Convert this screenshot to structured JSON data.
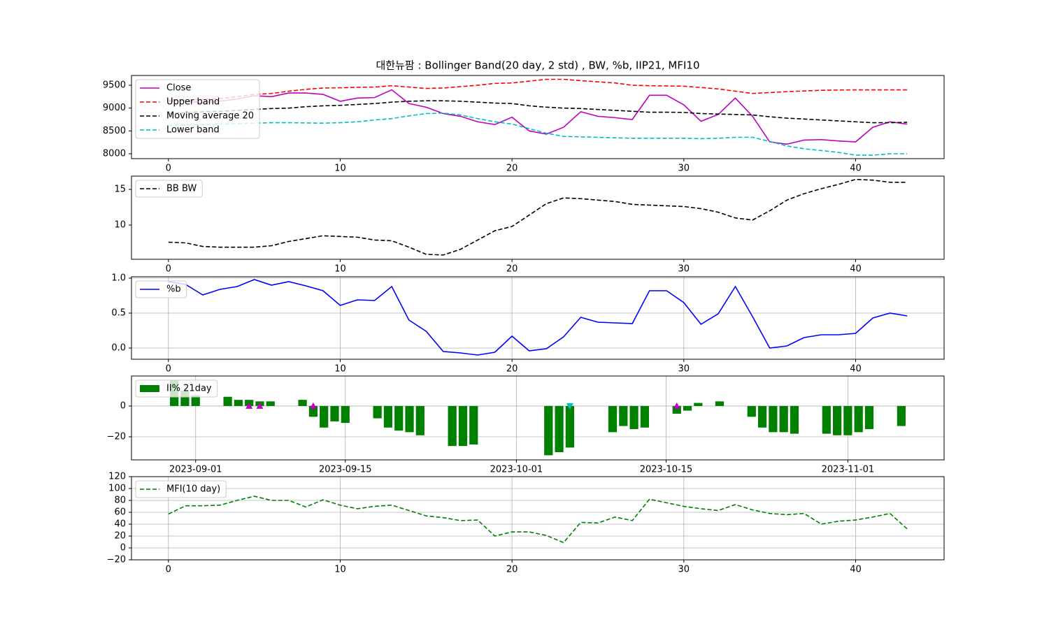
{
  "chart_data": [
    {
      "type": "line",
      "title": "대한뉴팜 : Bollinger Band(20 day, 2 std) , BW, %b, IIP21, MFI10",
      "x": [
        0,
        1,
        2,
        3,
        4,
        5,
        6,
        7,
        8,
        9,
        10,
        11,
        12,
        13,
        14,
        15,
        16,
        17,
        18,
        19,
        20,
        21,
        22,
        23,
        24,
        25,
        26,
        27,
        28,
        29,
        30,
        31,
        32,
        33,
        34,
        35,
        36,
        37,
        38,
        39,
        40,
        41,
        42,
        43
      ],
      "xlim": [
        -2.15,
        45.15
      ],
      "xticks": [
        0,
        10,
        20,
        30,
        40
      ],
      "ylim": [
        7893,
        9714
      ],
      "yticks": [
        8000,
        8500,
        9000,
        9500
      ],
      "grid": false,
      "legend": "upper left",
      "series": [
        {
          "name": "Close",
          "color": "#bf00bf",
          "dash": false,
          "values": [
            9180,
            9150,
            9120,
            9150,
            9200,
            9270,
            9250,
            9330,
            9330,
            9300,
            9150,
            9220,
            9230,
            9400,
            9100,
            9020,
            8880,
            8820,
            8700,
            8640,
            8800,
            8500,
            8430,
            8580,
            8920,
            8820,
            8790,
            8750,
            9280,
            9280,
            9070,
            8710,
            8860,
            9220,
            8820,
            8260,
            8210,
            8300,
            8310,
            8280,
            8260,
            8580,
            8700,
            8650
          ]
        },
        {
          "name": "Upper band",
          "color": "#ff0000",
          "dash": true,
          "values": [
            9150,
            9170,
            9190,
            9210,
            9250,
            9300,
            9320,
            9370,
            9410,
            9440,
            9445,
            9455,
            9460,
            9490,
            9460,
            9430,
            9440,
            9470,
            9500,
            9540,
            9550,
            9590,
            9630,
            9630,
            9600,
            9575,
            9550,
            9500,
            9490,
            9485,
            9480,
            9450,
            9420,
            9370,
            9320,
            9340,
            9360,
            9375,
            9390,
            9395,
            9400,
            9400,
            9400,
            9400
          ]
        },
        {
          "name": "Moving average 20",
          "color": "#000000",
          "dash": true,
          "values": [
            8880,
            8900,
            8920,
            8930,
            8950,
            8970,
            8990,
            9000,
            9030,
            9050,
            9060,
            9080,
            9100,
            9130,
            9150,
            9160,
            9160,
            9150,
            9130,
            9110,
            9100,
            9050,
            9020,
            9000,
            8990,
            8970,
            8950,
            8930,
            8910,
            8910,
            8905,
            8880,
            8870,
            8860,
            8850,
            8810,
            8780,
            8760,
            8740,
            8720,
            8700,
            8680,
            8680,
            8690
          ]
        },
        {
          "name": "Lower band",
          "color": "#00bfbf",
          "dash": true,
          "values": [
            8620,
            8630,
            8640,
            8650,
            8660,
            8670,
            8680,
            8680,
            8675,
            8670,
            8680,
            8700,
            8740,
            8770,
            8830,
            8880,
            8890,
            8850,
            8770,
            8700,
            8650,
            8550,
            8450,
            8380,
            8370,
            8360,
            8350,
            8340,
            8340,
            8340,
            8340,
            8330,
            8340,
            8360,
            8360,
            8270,
            8170,
            8110,
            8070,
            8030,
            7970,
            7970,
            8000,
            8000
          ]
        }
      ]
    },
    {
      "type": "line",
      "x": [
        0,
        1,
        2,
        3,
        4,
        5,
        6,
        7,
        8,
        9,
        10,
        11,
        12,
        13,
        14,
        15,
        16,
        17,
        18,
        19,
        20,
        21,
        22,
        23,
        24,
        25,
        26,
        27,
        28,
        29,
        30,
        31,
        32,
        33,
        34,
        35,
        36,
        37,
        38,
        39,
        40,
        41,
        42,
        43
      ],
      "xlim": [
        -2.15,
        45.15
      ],
      "xticks": [
        0,
        10,
        20,
        30,
        40
      ],
      "ylim": [
        5.2,
        16.86
      ],
      "yticks": [
        10,
        15
      ],
      "grid": false,
      "legend": "upper left",
      "series": [
        {
          "name": "BB BW",
          "color": "#000000",
          "dash": true,
          "values": [
            7.6,
            7.5,
            7.0,
            6.9,
            6.9,
            6.9,
            7.1,
            7.7,
            8.1,
            8.5,
            8.4,
            8.3,
            7.9,
            7.8,
            6.9,
            5.9,
            5.8,
            6.6,
            7.9,
            9.2,
            9.8,
            11.4,
            13.0,
            13.8,
            13.7,
            13.5,
            13.3,
            12.9,
            12.8,
            12.7,
            12.6,
            12.3,
            11.8,
            11.0,
            10.7,
            12.0,
            13.5,
            14.4,
            15.1,
            15.7,
            16.4,
            16.3,
            16.0,
            16.0
          ]
        }
      ]
    },
    {
      "type": "line",
      "x": [
        0,
        1,
        2,
        3,
        4,
        5,
        6,
        7,
        8,
        9,
        10,
        11,
        12,
        13,
        14,
        15,
        16,
        17,
        18,
        19,
        20,
        21,
        22,
        23,
        24,
        25,
        26,
        27,
        28,
        29,
        30,
        31,
        32,
        33,
        34,
        35,
        36,
        37,
        38,
        39,
        40,
        41,
        42,
        43
      ],
      "xlim": [
        -2.15,
        45.15
      ],
      "xticks": [
        0,
        10,
        20,
        30,
        40
      ],
      "ylim": [
        -0.16,
        1.02
      ],
      "yticks": [
        {
          "value": 0,
          "label": "0.0"
        },
        0.5,
        {
          "value": 1,
          "label": "1.0"
        }
      ],
      "grid": true,
      "legend": "upper left",
      "series": [
        {
          "name": "%b",
          "color": "#0000ff",
          "dash": false,
          "values": [
            0.95,
            0.91,
            0.76,
            0.84,
            0.88,
            0.98,
            0.9,
            0.95,
            0.89,
            0.82,
            0.61,
            0.69,
            0.68,
            0.88,
            0.4,
            0.24,
            -0.05,
            -0.07,
            -0.1,
            -0.06,
            0.17,
            -0.04,
            -0.01,
            0.16,
            0.44,
            0.37,
            0.36,
            0.35,
            0.82,
            0.82,
            0.65,
            0.34,
            0.49,
            0.88,
            0.45,
            0.0,
            0.03,
            0.15,
            0.19,
            0.19,
            0.21,
            0.43,
            0.5,
            0.46
          ]
        }
      ]
    },
    {
      "type": "bar",
      "x": [
        "2023-08-30",
        "2023-08-31",
        "2023-09-01",
        "2023-09-04",
        "2023-09-05",
        "2023-09-06",
        "2023-09-07",
        "2023-09-08",
        "2023-09-11",
        "2023-09-12",
        "2023-09-13",
        "2023-09-14",
        "2023-09-15",
        "2023-09-18",
        "2023-09-19",
        "2023-09-20",
        "2023-09-21",
        "2023-09-22",
        "2023-09-25",
        "2023-09-26",
        "2023-09-27",
        "2023-10-04",
        "2023-10-05",
        "2023-10-06",
        "2023-10-10",
        "2023-10-11",
        "2023-10-12",
        "2023-10-13",
        "2023-10-16",
        "2023-10-17",
        "2023-10-18",
        "2023-10-19",
        "2023-10-20",
        "2023-10-23",
        "2023-10-24",
        "2023-10-25",
        "2023-10-26",
        "2023-10-27",
        "2023-10-30",
        "2023-10-31",
        "2023-11-01",
        "2023-11-02",
        "2023-11-03",
        "2023-11-06"
      ],
      "xlim": [
        "2023-08-26",
        "2023-11-10"
      ],
      "xticks": [
        "2023-09-01",
        "2023-09-15",
        "2023-10-01",
        "2023-10-15",
        "2023-11-01"
      ],
      "ylim": [
        -35,
        19.5
      ],
      "yticks": [
        {
          "value": -20,
          "label": "−20"
        },
        0
      ],
      "grid": true,
      "legend": "upper left",
      "series": [
        {
          "name": "II% 21day",
          "color": "#008000",
          "values": [
            17,
            10,
            7,
            6,
            4,
            4,
            3,
            3,
            4,
            -7,
            -14,
            -10,
            -11,
            -8,
            -14,
            -16,
            -17,
            -19,
            -26,
            -26,
            -25,
            -32,
            -30,
            -27,
            -17,
            -13,
            -15,
            -14,
            -5,
            -3,
            2,
            0,
            3,
            -7,
            -14,
            -17,
            -17,
            -18,
            -18,
            -19,
            -19,
            -17,
            -15,
            -13
          ]
        }
      ],
      "markers": [
        {
          "color": "#bf00bf",
          "marker": "up",
          "x": [
            "2023-09-06",
            "2023-09-07",
            "2023-09-12",
            "2023-10-16"
          ],
          "values": [
            0,
            0,
            0,
            0
          ]
        },
        {
          "color": "#00bfbf",
          "marker": "down",
          "x": [
            "2023-10-06"
          ],
          "values": [
            0
          ]
        }
      ]
    },
    {
      "type": "line",
      "x": [
        0,
        1,
        2,
        3,
        4,
        5,
        6,
        7,
        8,
        9,
        10,
        11,
        12,
        13,
        14,
        15,
        16,
        17,
        18,
        19,
        20,
        21,
        22,
        23,
        24,
        25,
        26,
        27,
        28,
        29,
        30,
        31,
        32,
        33,
        34,
        35,
        36,
        37,
        38,
        39,
        40,
        41,
        42,
        43
      ],
      "xlim": [
        -2.15,
        45.15
      ],
      "xticks": [
        0,
        10,
        20,
        30,
        40
      ],
      "ylim": [
        -20,
        120
      ],
      "yticks": [
        {
          "value": -20,
          "label": "−20"
        },
        0,
        20,
        40,
        60,
        80,
        100,
        120
      ],
      "grid": true,
      "legend": "upper left",
      "series": [
        {
          "name": "MFI(10 day)",
          "color": "#008000",
          "dash": true,
          "values": [
            57,
            71,
            71,
            72,
            80,
            87,
            80,
            80,
            69,
            81,
            72,
            66,
            70,
            72,
            63,
            54,
            51,
            46,
            47,
            20,
            27,
            27,
            21,
            9,
            43,
            42,
            52,
            46,
            82,
            76,
            70,
            66,
            63,
            73,
            64,
            58,
            56,
            58,
            40,
            45,
            47,
            52,
            58,
            32
          ]
        }
      ]
    }
  ]
}
